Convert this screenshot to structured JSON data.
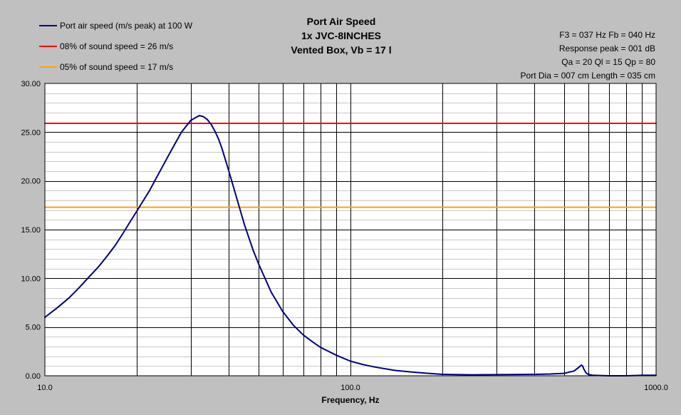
{
  "chart_data": {
    "type": "line",
    "title": [
      "Port Air Speed",
      "1x JVC-8INCHES",
      "Vented Box, Vb = 17 l"
    ],
    "xlabel": "Frequency, Hz",
    "ylabel": "",
    "x_scale": "log",
    "xlim": [
      10,
      1000
    ],
    "ylim": [
      0,
      30
    ],
    "grid": true,
    "legend_position": "top-left",
    "info_lines": [
      "F3 = 037 Hz  Fb = 040 Hz",
      "Response peak = 001 dB",
      "Qa = 20  Ql = 15  Qp = 80",
      "Port Dia = 007 cm  Length = 035 cm"
    ],
    "x_ticks": [
      {
        "value": 10,
        "label": "10.0"
      },
      {
        "value": 100,
        "label": "100.0"
      },
      {
        "value": 1000,
        "label": "1000.0"
      }
    ],
    "y_ticks": [
      {
        "value": 0,
        "label": "0.00"
      },
      {
        "value": 5,
        "label": "5.00"
      },
      {
        "value": 10,
        "label": "10.00"
      },
      {
        "value": 15,
        "label": "15.00"
      },
      {
        "value": 20,
        "label": "20.00"
      },
      {
        "value": 25,
        "label": "25.00"
      },
      {
        "value": 30,
        "label": "30.00"
      }
    ],
    "series": [
      {
        "name": "Port air speed (m/s peak) at 100 W",
        "color": "#000080",
        "x": [
          10,
          11,
          12,
          13,
          14,
          15,
          16,
          17,
          18,
          19,
          20,
          22,
          24,
          26,
          28,
          30,
          32,
          33,
          34,
          35,
          36,
          37,
          38,
          40,
          42,
          45,
          48,
          50,
          55,
          60,
          65,
          70,
          75,
          80,
          90,
          100,
          110,
          120,
          140,
          160,
          180,
          200,
          250,
          300,
          400,
          450,
          500,
          540,
          560,
          570,
          575,
          580,
          590,
          600,
          620,
          700,
          800,
          900,
          1000
        ],
        "y": [
          6.0,
          7.0,
          8.0,
          9.1,
          10.2,
          11.2,
          12.3,
          13.4,
          14.6,
          15.8,
          16.9,
          19.0,
          21.2,
          23.2,
          25.0,
          26.2,
          26.7,
          26.6,
          26.3,
          25.8,
          25.1,
          24.3,
          23.3,
          21.0,
          18.7,
          15.5,
          12.9,
          11.5,
          8.6,
          6.6,
          5.2,
          4.2,
          3.5,
          2.9,
          2.1,
          1.5,
          1.15,
          0.9,
          0.55,
          0.37,
          0.25,
          0.15,
          0.1,
          0.12,
          0.15,
          0.18,
          0.25,
          0.5,
          0.9,
          1.1,
          1.0,
          0.7,
          0.3,
          0.15,
          0.05,
          0.0,
          0.0,
          0.05,
          0.05
        ]
      },
      {
        "name": "08% of sound speed = 26 m/s",
        "color": "#ff0000",
        "x": [
          10,
          1000
        ],
        "y": [
          25.9,
          25.9
        ]
      },
      {
        "name": "05% of sound speed = 17 m/s",
        "color": "#ffa500",
        "x": [
          10,
          1000
        ],
        "y": [
          17.3,
          17.3
        ]
      }
    ]
  }
}
